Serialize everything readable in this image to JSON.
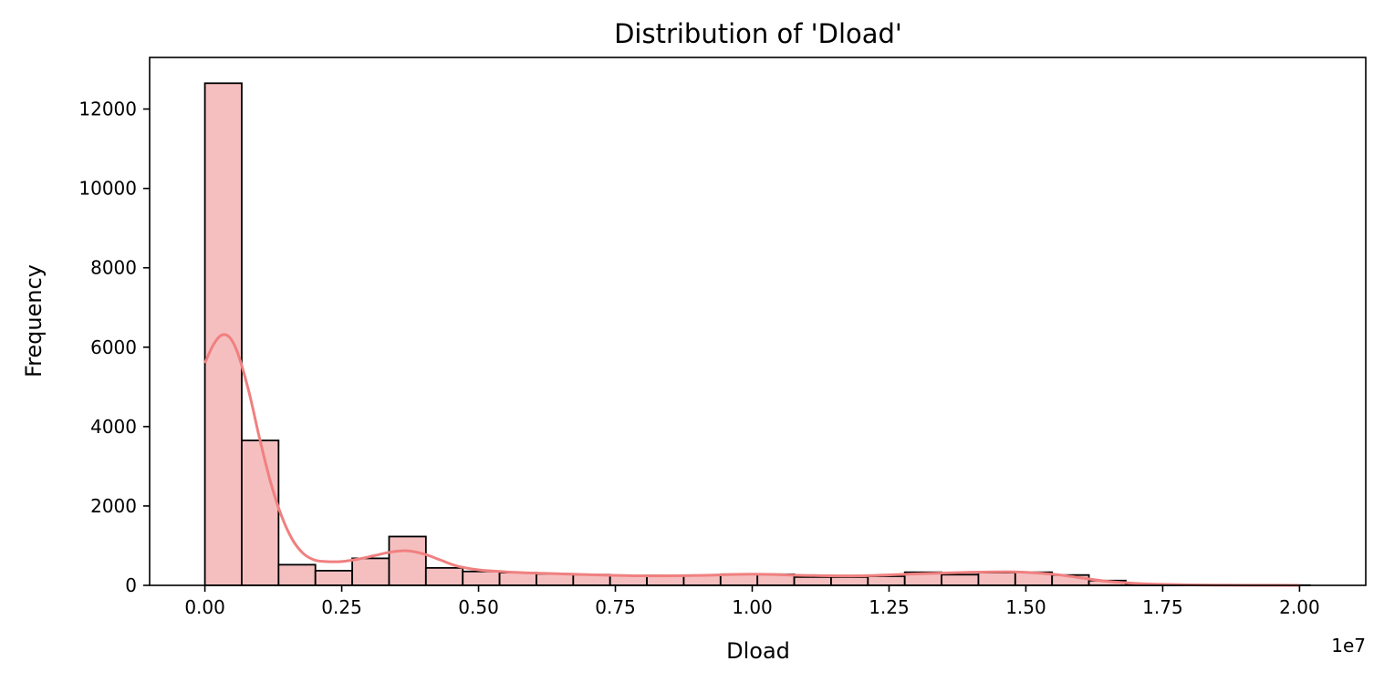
{
  "chart_data": {
    "type": "histogram",
    "title": "Distribution of 'Dload'",
    "xlabel": "Dload",
    "ylabel": "Frequency",
    "x_offset_label": "1e7",
    "x_scale": 10000000,
    "xlim": [
      -1010000,
      21210000
    ],
    "ylim": [
      0,
      13300
    ],
    "x_ticks": [
      0,
      2500000,
      5000000,
      7500000,
      10000000,
      12500000,
      15000000,
      17500000,
      20000000
    ],
    "x_tick_labels": [
      "0.00",
      "0.25",
      "0.50",
      "0.75",
      "1.00",
      "1.25",
      "1.50",
      "1.75",
      "2.00"
    ],
    "y_ticks": [
      0,
      2000,
      4000,
      6000,
      8000,
      10000,
      12000
    ],
    "y_tick_labels": [
      "0",
      "2000",
      "4000",
      "6000",
      "8000",
      "10000",
      "12000"
    ],
    "bin_start": 0,
    "bin_width": 673000,
    "counts": [
      12650,
      3650,
      520,
      370,
      680,
      1230,
      440,
      350,
      320,
      290,
      270,
      250,
      250,
      250,
      280,
      280,
      210,
      210,
      230,
      330,
      270,
      320,
      330,
      260,
      120,
      20,
      10,
      5,
      5,
      5
    ],
    "kde": {
      "x": [
        0,
        150000,
        300000,
        450000,
        600000,
        800000,
        1000000,
        1200000,
        1400000,
        1600000,
        1800000,
        2000000,
        2200000,
        2500000,
        2800000,
        3100000,
        3400000,
        3700000,
        4000000,
        4300000,
        4600000,
        5000000,
        5500000,
        6000000,
        7000000,
        8000000,
        9000000,
        10000000,
        11000000,
        12000000,
        13000000,
        14000000,
        14800000,
        15500000,
        16000000,
        16500000,
        17000000,
        17500000,
        18000000,
        18500000,
        19000000,
        20000000
      ],
      "y": [
        5600,
        6050,
        6300,
        6250,
        5850,
        4900,
        3700,
        2600,
        1750,
        1150,
        800,
        640,
        600,
        600,
        660,
        750,
        840,
        870,
        790,
        640,
        490,
        390,
        340,
        310,
        270,
        240,
        250,
        280,
        250,
        240,
        290,
        330,
        340,
        280,
        190,
        100,
        50,
        25,
        12,
        6,
        3,
        1
      ]
    },
    "colors": {
      "bar_fill": "#f5bfc0",
      "bar_edge": "#000000",
      "kde_line": "#f08080"
    },
    "grid": false,
    "legend": "none"
  }
}
